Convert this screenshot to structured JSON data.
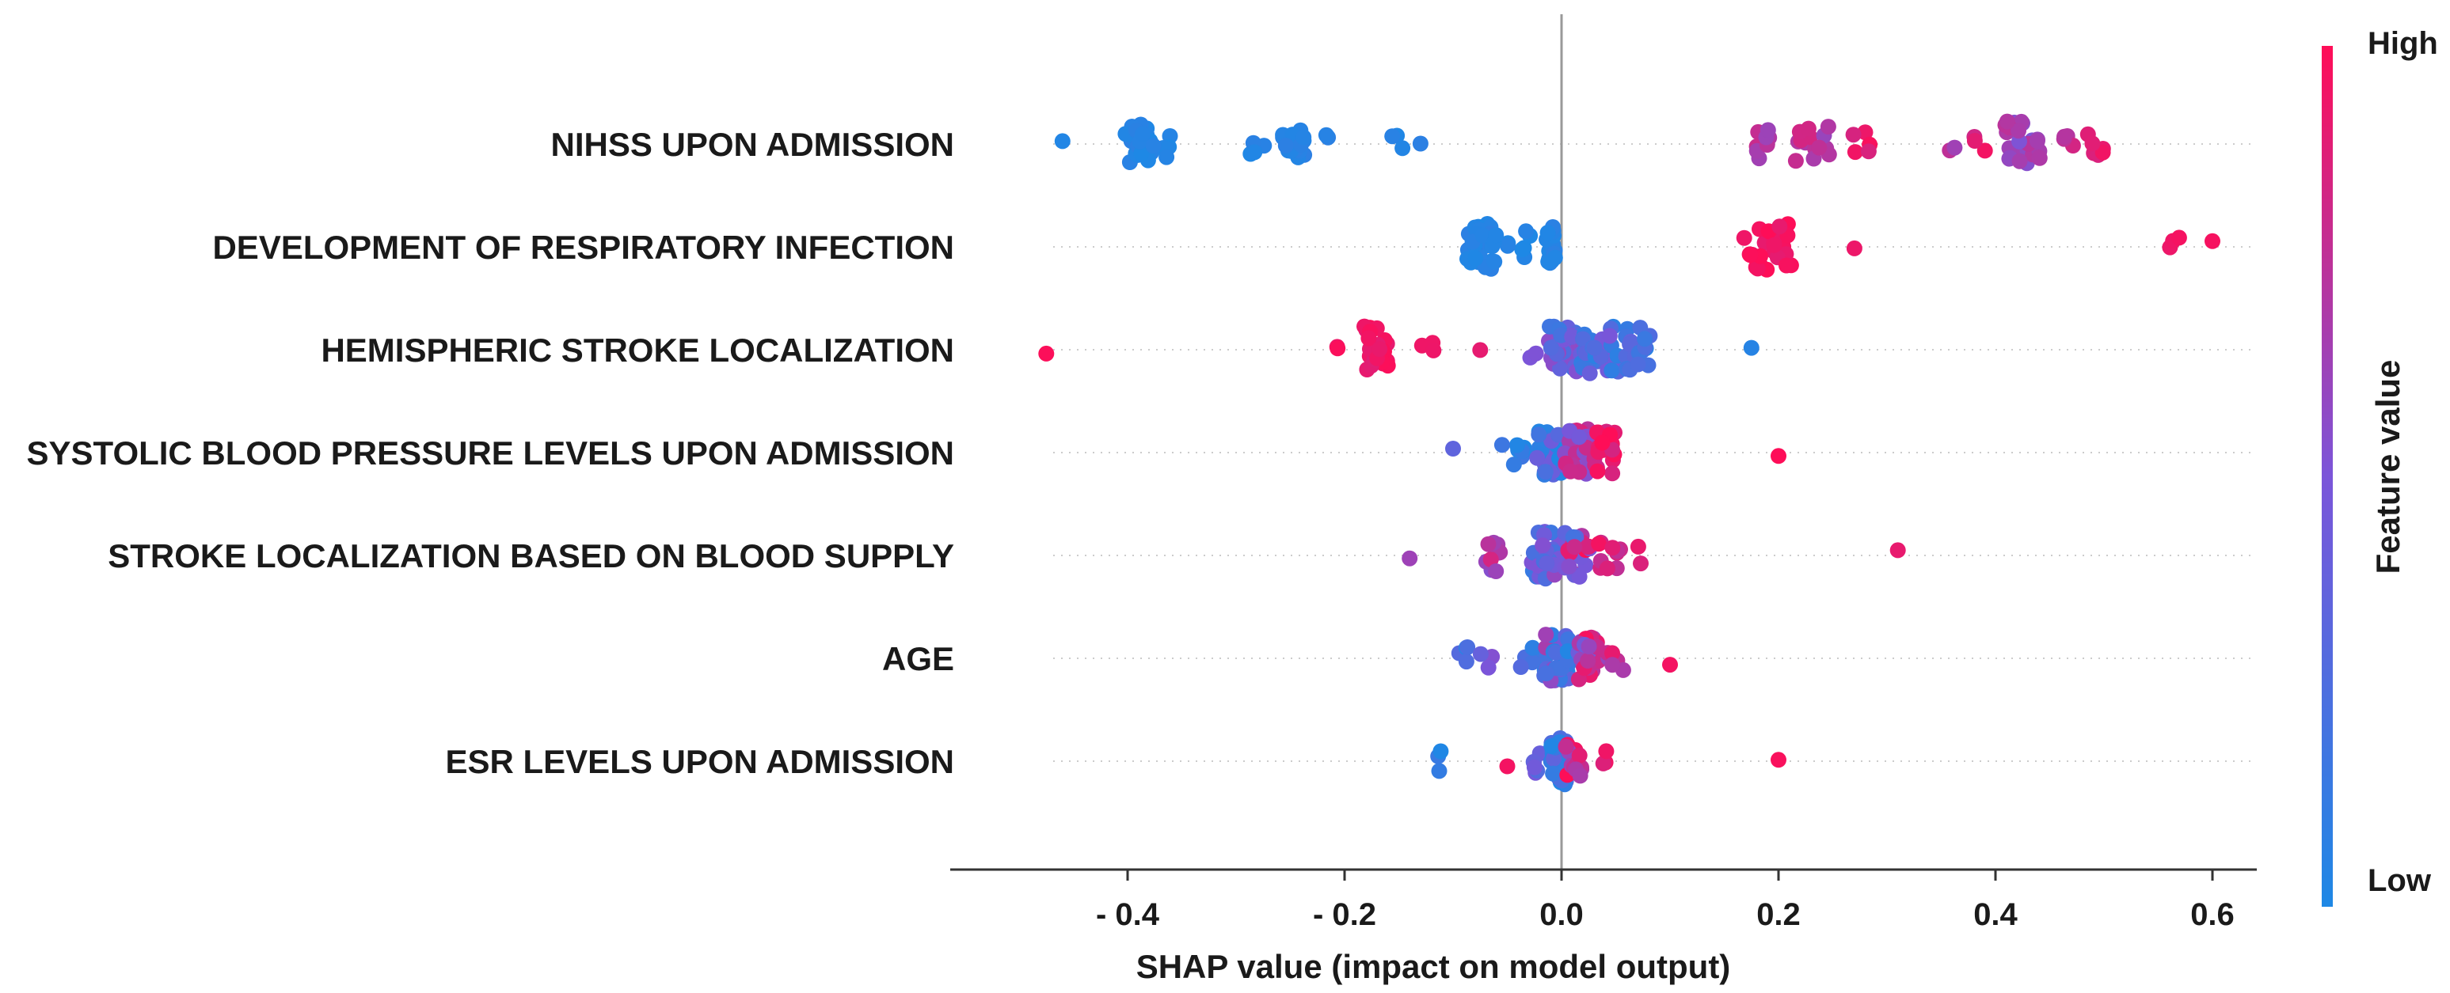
{
  "chart_data": {
    "type": "scatter",
    "subtype": "shap-beeswarm",
    "title": "",
    "xlabel": "SHAP value (impact on model output)",
    "ylabel": "",
    "xlim": [
      -0.55,
      0.63
    ],
    "x_ticks": [
      -0.4,
      -0.2,
      0.0,
      0.2,
      0.4,
      0.6
    ],
    "x_tick_labels": [
      "- 0.4",
      "- 0.2",
      "0.0",
      "0.2",
      "0.4",
      "0.6"
    ],
    "zero_line": 0.0,
    "grid": false,
    "colorbar": {
      "title": "Feature value",
      "high_label": "High",
      "low_label": "Low",
      "low_color": "#1e88e5",
      "mid_color": "#7b55d9",
      "high_color": "#ff0d57"
    },
    "features": [
      {
        "name": "NIHSS UPON ADMISSION",
        "clusters": [
          {
            "x": -0.46,
            "n": 1,
            "spread": 0.0,
            "v": [
              0.02,
              0.02
            ]
          },
          {
            "x": -0.39,
            "n": 26,
            "spread": 0.012,
            "v": [
              0.0,
              0.08
            ]
          },
          {
            "x": -0.37,
            "n": 6,
            "spread": 0.01,
            "v": [
              0.0,
              0.08
            ]
          },
          {
            "x": -0.28,
            "n": 4,
            "spread": 0.008,
            "v": [
              0.0,
              0.08
            ]
          },
          {
            "x": -0.245,
            "n": 14,
            "spread": 0.012,
            "v": [
              0.0,
              0.08
            ]
          },
          {
            "x": -0.215,
            "n": 2,
            "spread": 0.006,
            "v": [
              0.0,
              0.08
            ]
          },
          {
            "x": -0.15,
            "n": 3,
            "spread": 0.008,
            "v": [
              0.0,
              0.08
            ]
          },
          {
            "x": -0.13,
            "n": 1,
            "spread": 0.0,
            "v": [
              0.0,
              0.08
            ]
          },
          {
            "x": 0.185,
            "n": 8,
            "spread": 0.01,
            "v": [
              0.6,
              0.8
            ]
          },
          {
            "x": 0.225,
            "n": 14,
            "spread": 0.022,
            "v": [
              0.6,
              0.85
            ]
          },
          {
            "x": 0.275,
            "n": 5,
            "spread": 0.01,
            "v": [
              0.8,
              1.0
            ]
          },
          {
            "x": 0.36,
            "n": 2,
            "spread": 0.006,
            "v": [
              0.6,
              0.8
            ]
          },
          {
            "x": 0.385,
            "n": 3,
            "spread": 0.008,
            "v": [
              0.8,
              1.0
            ]
          },
          {
            "x": 0.425,
            "n": 30,
            "spread": 0.016,
            "v": [
              0.5,
              0.75
            ]
          },
          {
            "x": 0.47,
            "n": 4,
            "spread": 0.008,
            "v": [
              0.7,
              0.9
            ]
          },
          {
            "x": 0.495,
            "n": 6,
            "spread": 0.01,
            "v": [
              0.85,
              1.0
            ]
          }
        ]
      },
      {
        "name": "DEVELOPMENT OF RESPIRATORY INFECTION",
        "clusters": [
          {
            "x": -0.075,
            "n": 30,
            "spread": 0.012,
            "v": [
              0.0,
              0.08
            ]
          },
          {
            "x": -0.045,
            "n": 10,
            "spread": 0.018,
            "v": [
              0.0,
              0.08
            ]
          },
          {
            "x": -0.01,
            "n": 18,
            "spread": 0.004,
            "v": [
              0.0,
              0.08
            ]
          },
          {
            "x": 0.19,
            "n": 24,
            "spread": 0.022,
            "v": [
              0.88,
              1.0
            ]
          },
          {
            "x": 0.27,
            "n": 1,
            "spread": 0.0,
            "v": [
              0.88,
              1.0
            ]
          },
          {
            "x": 0.565,
            "n": 3,
            "spread": 0.005,
            "v": [
              0.88,
              1.0
            ]
          },
          {
            "x": 0.6,
            "n": 1,
            "spread": 0.0,
            "v": [
              0.9,
              1.0
            ]
          }
        ]
      },
      {
        "name": "HEMISPHERIC STROKE LOCALIZATION",
        "clusters": [
          {
            "x": -0.475,
            "n": 1,
            "spread": 0.0,
            "v": [
              0.95,
              1.0
            ]
          },
          {
            "x": -0.205,
            "n": 2,
            "spread": 0.005,
            "v": [
              0.9,
              1.0
            ]
          },
          {
            "x": -0.17,
            "n": 24,
            "spread": 0.012,
            "v": [
              0.88,
              1.0
            ]
          },
          {
            "x": -0.125,
            "n": 3,
            "spread": 0.008,
            "v": [
              0.85,
              1.0
            ]
          },
          {
            "x": -0.075,
            "n": 1,
            "spread": 0.0,
            "v": [
              0.9,
              1.0
            ]
          },
          {
            "x": -0.02,
            "n": 3,
            "spread": 0.01,
            "v": [
              0.5,
              0.7
            ]
          },
          {
            "x": 0.005,
            "n": 34,
            "spread": 0.016,
            "v": [
              0.15,
              0.6
            ]
          },
          {
            "x": 0.035,
            "n": 32,
            "spread": 0.018,
            "v": [
              0.05,
              0.5
            ]
          },
          {
            "x": 0.07,
            "n": 22,
            "spread": 0.012,
            "v": [
              0.05,
              0.4
            ]
          },
          {
            "x": 0.175,
            "n": 1,
            "spread": 0.0,
            "v": [
              0.0,
              0.05
            ]
          }
        ]
      },
      {
        "name": "SYSTOLIC BLOOD PRESSURE LEVELS UPON ADMISSION",
        "clusters": [
          {
            "x": -0.1,
            "n": 1,
            "spread": 0.0,
            "v": [
              0.35,
              0.45
            ]
          },
          {
            "x": -0.045,
            "n": 8,
            "spread": 0.012,
            "v": [
              0.0,
              0.2
            ]
          },
          {
            "x": -0.01,
            "n": 40,
            "spread": 0.013,
            "v": [
              0.0,
              0.45
            ]
          },
          {
            "x": 0.015,
            "n": 28,
            "spread": 0.012,
            "v": [
              0.45,
              0.9
            ]
          },
          {
            "x": 0.04,
            "n": 20,
            "spread": 0.01,
            "v": [
              0.8,
              1.0
            ]
          },
          {
            "x": 0.2,
            "n": 1,
            "spread": 0.0,
            "v": [
              0.9,
              1.0
            ]
          }
        ]
      },
      {
        "name": "STROKE LOCALIZATION BASED ON BLOOD SUPPLY",
        "clusters": [
          {
            "x": -0.14,
            "n": 1,
            "spread": 0.0,
            "v": [
              0.6,
              0.7
            ]
          },
          {
            "x": -0.06,
            "n": 10,
            "spread": 0.012,
            "v": [
              0.5,
              0.85
            ]
          },
          {
            "x": -0.015,
            "n": 40,
            "spread": 0.013,
            "v": [
              0.1,
              0.6
            ]
          },
          {
            "x": 0.015,
            "n": 24,
            "spread": 0.012,
            "v": [
              0.2,
              1.0
            ]
          },
          {
            "x": 0.045,
            "n": 10,
            "spread": 0.012,
            "v": [
              0.75,
              1.0
            ]
          },
          {
            "x": 0.07,
            "n": 2,
            "spread": 0.004,
            "v": [
              0.85,
              1.0
            ]
          },
          {
            "x": 0.31,
            "n": 1,
            "spread": 0.0,
            "v": [
              0.9,
              1.0
            ]
          }
        ]
      },
      {
        "name": "AGE",
        "clusters": [
          {
            "x": -0.09,
            "n": 4,
            "spread": 0.006,
            "v": [
              0.0,
              0.3
            ]
          },
          {
            "x": -0.07,
            "n": 3,
            "spread": 0.006,
            "v": [
              0.3,
              0.6
            ]
          },
          {
            "x": -0.03,
            "n": 6,
            "spread": 0.01,
            "v": [
              0.0,
              0.3
            ]
          },
          {
            "x": -0.005,
            "n": 34,
            "spread": 0.012,
            "v": [
              0.0,
              0.7
            ]
          },
          {
            "x": 0.025,
            "n": 20,
            "spread": 0.01,
            "v": [
              0.4,
              1.0
            ]
          },
          {
            "x": 0.05,
            "n": 6,
            "spread": 0.008,
            "v": [
              0.6,
              1.0
            ]
          },
          {
            "x": 0.1,
            "n": 1,
            "spread": 0.0,
            "v": [
              0.9,
              1.0
            ]
          }
        ]
      },
      {
        "name": "ESR LEVELS UPON ADMISSION",
        "clusters": [
          {
            "x": -0.115,
            "n": 3,
            "spread": 0.005,
            "v": [
              0.0,
              0.15
            ]
          },
          {
            "x": -0.05,
            "n": 1,
            "spread": 0.0,
            "v": [
              0.9,
              1.0
            ]
          },
          {
            "x": -0.025,
            "n": 6,
            "spread": 0.008,
            "v": [
              0.2,
              0.5
            ]
          },
          {
            "x": -0.002,
            "n": 36,
            "spread": 0.008,
            "v": [
              0.0,
              0.35
            ]
          },
          {
            "x": 0.012,
            "n": 16,
            "spread": 0.008,
            "v": [
              0.6,
              1.0
            ]
          },
          {
            "x": 0.04,
            "n": 3,
            "spread": 0.006,
            "v": [
              0.85,
              1.0
            ]
          },
          {
            "x": 0.2,
            "n": 1,
            "spread": 0.0,
            "v": [
              0.9,
              1.0
            ]
          }
        ]
      }
    ]
  }
}
